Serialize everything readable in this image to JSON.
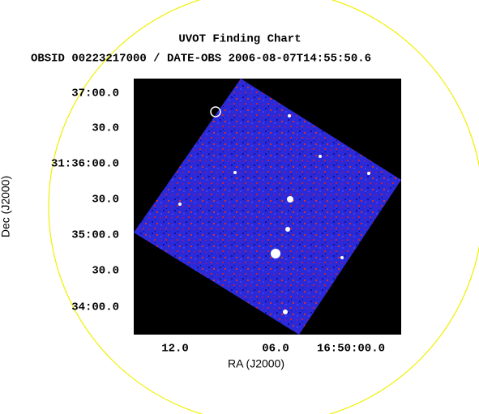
{
  "header": {
    "title": "UVOT Finding Chart",
    "subtitle": "OBSID 00223217000 / DATE-OBS 2006-08-07T14:55:50.6"
  },
  "y_axis": {
    "label": "Dec (J2000)",
    "ticks": [
      "37:00.0",
      "30.0",
      "31:36:00.0",
      "30.0",
      "35:00.0",
      "30.0",
      "34:00.0"
    ]
  },
  "x_axis": {
    "label": "RA (J2000)",
    "ticks": [
      "12.0",
      "06.0",
      "16:50:00.0"
    ]
  }
}
